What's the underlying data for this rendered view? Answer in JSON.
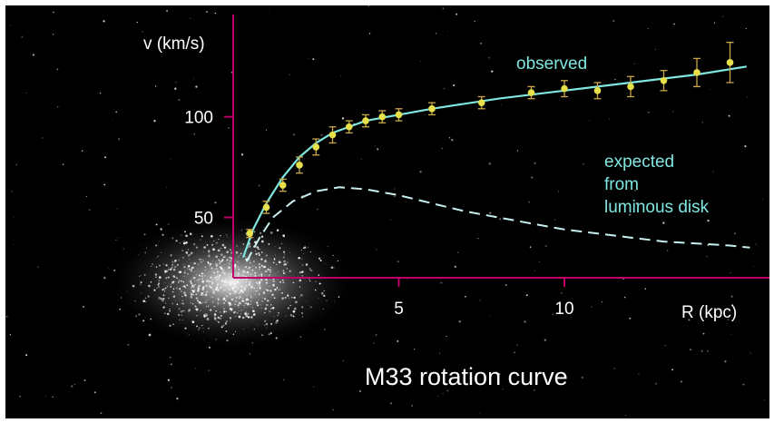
{
  "chart_data": {
    "type": "scatter",
    "title": "M33 rotation curve",
    "xlabel": "R (kpc)",
    "ylabel": "v (km/s)",
    "xlim": [
      0,
      16
    ],
    "ylim": [
      20,
      140
    ],
    "x_ticks": [
      5,
      10
    ],
    "y_ticks": [
      50,
      100
    ],
    "colors": {
      "axes": "#c0006a",
      "observed_points": "#e6e04a",
      "error_bars": "#c9a84a",
      "observed_curve": "#7fe6e0",
      "expected_curve": "#c8f0f0",
      "annotation": "#7fe6e0",
      "background": "#000000"
    },
    "series": [
      {
        "name": "observed",
        "kind": "points",
        "x": [
          0.5,
          1.0,
          1.5,
          2.0,
          2.5,
          3.0,
          3.5,
          4.0,
          4.5,
          5.0,
          6.0,
          7.5,
          9.0,
          10.0,
          11.0,
          12.0,
          13.0,
          14.0,
          15.0
        ],
        "y": [
          42,
          55,
          66,
          76,
          85,
          91,
          95,
          98,
          100,
          101,
          104,
          107,
          112,
          114,
          113,
          115,
          118,
          122,
          127
        ],
        "err": [
          2,
          3,
          3,
          4,
          4,
          4,
          3,
          3,
          3,
          3,
          3,
          3,
          3,
          4,
          4,
          5,
          5,
          7,
          10
        ]
      },
      {
        "name": "observed",
        "kind": "fit",
        "x": [
          0.3,
          0.6,
          1.0,
          1.5,
          2.0,
          2.5,
          3.0,
          4.0,
          5.0,
          6.0,
          8.0,
          10.0,
          12.0,
          14.0,
          15.5
        ],
        "y": [
          30,
          44,
          57,
          70,
          80,
          87,
          92,
          98,
          101,
          104,
          109,
          113,
          117,
          121,
          125
        ]
      },
      {
        "name": "expected from luminous disk",
        "kind": "line",
        "x": [
          0.4,
          0.8,
          1.2,
          1.8,
          2.5,
          3.2,
          4.0,
          5.0,
          6.0,
          7.0,
          8.0,
          9.0,
          10.0,
          11.0,
          12.0,
          13.0,
          14.0,
          15.0,
          15.6
        ],
        "y": [
          28,
          40,
          50,
          58,
          63,
          65,
          64,
          61,
          57,
          53,
          50,
          47,
          44,
          42,
          40,
          38,
          37,
          36,
          35
        ]
      }
    ],
    "annotations": {
      "observed": "observed",
      "expected": [
        "expected",
        "from",
        "luminous disk"
      ]
    }
  }
}
